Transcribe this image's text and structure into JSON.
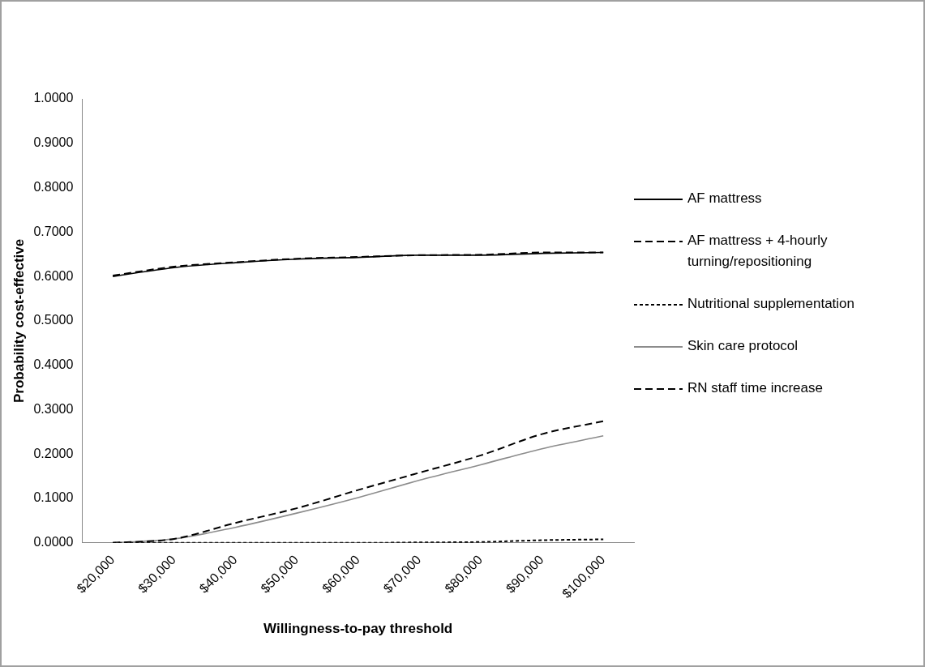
{
  "chart_data": {
    "type": "line",
    "xlabel": "Willingness-to-pay threshold",
    "ylabel": "Probability cost-effective",
    "categories": [
      "$20,000",
      "$30,000",
      "$40,000",
      "$50,000",
      "$60,000",
      "$70,000",
      "$80,000",
      "$90,000",
      "$100,000"
    ],
    "series": [
      {
        "name": "AF mattress",
        "color": "#000000",
        "line_style": "solid",
        "values": [
          0.6,
          0.62,
          0.631,
          0.639,
          0.643,
          0.648,
          0.648,
          0.652,
          0.654
        ]
      },
      {
        "name": "AF mattress + 4-hourly turning/repositioning",
        "color": "#000000",
        "line_style": "dashed",
        "values": [
          0.602,
          0.622,
          0.632,
          0.64,
          0.644,
          0.648,
          0.649,
          0.654,
          0.654
        ]
      },
      {
        "name": "Nutritional supplementation",
        "color": "#000000",
        "line_style": "dotted",
        "values": [
          0,
          0,
          0,
          0,
          0,
          0.001,
          0.002,
          0.006,
          0.008
        ]
      },
      {
        "name": "Skin care protocol",
        "color": "#8c8c8c",
        "line_style": "solid",
        "values": [
          0,
          0.009,
          0.035,
          0.067,
          0.102,
          0.141,
          0.176,
          0.212,
          0.241
        ]
      },
      {
        "name": "RN staff time increase",
        "color": "#000000",
        "line_style": "dashed",
        "values": [
          0,
          0.009,
          0.045,
          0.078,
          0.119,
          0.158,
          0.197,
          0.245,
          0.274
        ]
      }
    ],
    "ylim": [
      0,
      1
    ],
    "yticks": [
      {
        "value": 0,
        "label": "0.0000"
      },
      {
        "value": 0.1,
        "label": "0.1000"
      },
      {
        "value": 0.2,
        "label": "0.2000"
      },
      {
        "value": 0.3,
        "label": "0.3000"
      },
      {
        "value": 0.4,
        "label": "0.4000"
      },
      {
        "value": 0.5,
        "label": "0.5000"
      },
      {
        "value": 0.6,
        "label": "0.6000"
      },
      {
        "value": 0.7,
        "label": "0.7000"
      },
      {
        "value": 0.8,
        "label": "0.8000"
      },
      {
        "value": 0.9,
        "label": "0.9000"
      },
      {
        "value": 1,
        "label": "1.0000"
      }
    ],
    "grid": false,
    "legend": "right",
    "marker": "none"
  }
}
